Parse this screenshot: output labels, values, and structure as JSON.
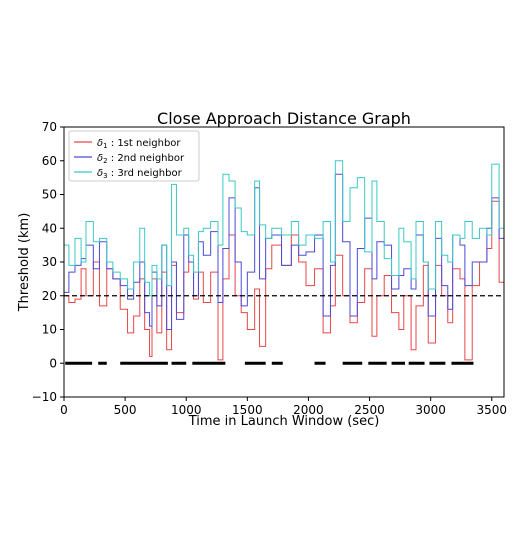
{
  "chart_data": {
    "type": "line",
    "title": "Close Approach Distance Graph",
    "xlabel": "Time in Launch Window (sec)",
    "ylabel": "Threshold (km)",
    "xlim": [
      0,
      3600
    ],
    "ylim": [
      -10,
      70
    ],
    "x_ticks": [
      0,
      500,
      1000,
      1500,
      2000,
      2500,
      3000,
      3500
    ],
    "y_ticks": [
      -10,
      0,
      10,
      20,
      30,
      40,
      50,
      60,
      70
    ],
    "legend_position": "upper-left",
    "grid": false,
    "series": [
      {
        "name": "δ1 : 1st neighbor",
        "sub": "1",
        "suffix": " : 1st neighbor",
        "color": "#e8474a",
        "style": "step",
        "x": [
          0,
          40,
          90,
          140,
          180,
          240,
          290,
          350,
          400,
          460,
          520,
          570,
          620,
          660,
          700,
          720,
          760,
          800,
          840,
          880,
          920,
          980,
          1020,
          1060,
          1100,
          1140,
          1200,
          1260,
          1300,
          1350,
          1400,
          1450,
          1500,
          1560,
          1600,
          1650,
          1700,
          1780,
          1860,
          1920,
          1980,
          2050,
          2120,
          2180,
          2220,
          2280,
          2340,
          2400,
          2460,
          2520,
          2560,
          2620,
          2680,
          2740,
          2780,
          2840,
          2880,
          2940,
          2980,
          3040,
          3090,
          3140,
          3180,
          3240,
          3280,
          3340,
          3400,
          3460,
          3500,
          3560
        ],
        "y": [
          20,
          18,
          19,
          28,
          20,
          30,
          17,
          28,
          25,
          16,
          9,
          14,
          25,
          10,
          2,
          25,
          9,
          27,
          4,
          29,
          15,
          27,
          30,
          19,
          27,
          18,
          27,
          1,
          25,
          38,
          20,
          15,
          10,
          22,
          5,
          28,
          35,
          29,
          38,
          30,
          23,
          28,
          9,
          17,
          32,
          20,
          12,
          18,
          28,
          8,
          20,
          26,
          15,
          10,
          20,
          4,
          17,
          29,
          6,
          29,
          20,
          12,
          28,
          25,
          1,
          23,
          30,
          34,
          48,
          24
        ]
      },
      {
        "name": "δ2 : 2nd neighbor",
        "sub": "2",
        "suffix": " : 2nd neighbor",
        "color": "#4b4bd8",
        "style": "step",
        "x": [
          0,
          40,
          90,
          140,
          180,
          240,
          290,
          350,
          400,
          460,
          520,
          570,
          620,
          660,
          700,
          720,
          760,
          800,
          840,
          880,
          920,
          980,
          1020,
          1060,
          1100,
          1140,
          1200,
          1260,
          1300,
          1350,
          1400,
          1450,
          1500,
          1560,
          1600,
          1650,
          1700,
          1780,
          1860,
          1920,
          1980,
          2050,
          2120,
          2180,
          2220,
          2280,
          2340,
          2400,
          2460,
          2520,
          2560,
          2620,
          2680,
          2740,
          2780,
          2840,
          2880,
          2940,
          2980,
          3040,
          3090,
          3140,
          3180,
          3240,
          3280,
          3340,
          3400,
          3460,
          3500,
          3560
        ],
        "y": [
          21,
          27,
          29,
          31,
          35,
          28,
          36,
          28,
          25,
          23,
          19,
          24,
          30,
          15,
          11,
          27,
          17,
          35,
          10,
          30,
          13,
          38,
          30,
          20,
          36,
          32,
          39,
          18,
          34,
          49,
          30,
          17,
          27,
          52,
          25,
          37,
          38,
          29,
          35,
          32,
          33,
          38,
          14,
          29,
          56,
          36,
          14,
          34,
          43,
          25,
          36,
          35,
          22,
          26,
          28,
          22,
          38,
          30,
          14,
          37,
          23,
          16,
          38,
          35,
          23,
          30,
          30,
          40,
          49,
          37
        ]
      },
      {
        "name": "δ3 : 3rd neighbor",
        "sub": "3",
        "suffix": " : 3rd neighbor",
        "color": "#3cc8c6",
        "style": "step",
        "x": [
          0,
          40,
          90,
          140,
          180,
          240,
          290,
          350,
          400,
          460,
          520,
          570,
          620,
          660,
          700,
          720,
          760,
          800,
          840,
          880,
          920,
          980,
          1020,
          1060,
          1100,
          1140,
          1200,
          1260,
          1300,
          1350,
          1400,
          1450,
          1500,
          1560,
          1600,
          1650,
          1700,
          1780,
          1860,
          1920,
          1980,
          2050,
          2120,
          2180,
          2220,
          2280,
          2340,
          2400,
          2460,
          2520,
          2560,
          2620,
          2680,
          2740,
          2780,
          2840,
          2880,
          2940,
          2980,
          3040,
          3090,
          3140,
          3180,
          3240,
          3280,
          3340,
          3400,
          3460,
          3500,
          3560
        ],
        "y": [
          35,
          29,
          37,
          30,
          42,
          36,
          37,
          30,
          27,
          25,
          22,
          30,
          40,
          24,
          20,
          29,
          25,
          35,
          23,
          53,
          38,
          40,
          32,
          27,
          39,
          40,
          42,
          35,
          56,
          54,
          46,
          39,
          38,
          54,
          41,
          37,
          40,
          38,
          42,
          35,
          38,
          37,
          42,
          30,
          60,
          42,
          52,
          55,
          33,
          54,
          42,
          31,
          26,
          40,
          36,
          25,
          42,
          30,
          22,
          42,
          32,
          30,
          38,
          37,
          42,
          37,
          40,
          38,
          59,
          40
        ]
      },
      {
        "name": "threshold",
        "color": "#000000",
        "style": "dashed",
        "x": [
          0,
          3600
        ],
        "y": [
          20,
          20
        ]
      },
      {
        "name": "zero-distance segments",
        "color": "#000000",
        "style": "segments",
        "segments": [
          [
            10,
            230
          ],
          [
            280,
            350
          ],
          [
            460,
            850
          ],
          [
            880,
            1000
          ],
          [
            1050,
            1320
          ],
          [
            1480,
            1650
          ],
          [
            1700,
            1790
          ],
          [
            2050,
            2140
          ],
          [
            2280,
            2440
          ],
          [
            2490,
            2640
          ],
          [
            2680,
            2790
          ],
          [
            2820,
            2950
          ],
          [
            2990,
            3120
          ],
          [
            3170,
            3350
          ]
        ],
        "y": 0
      }
    ]
  }
}
